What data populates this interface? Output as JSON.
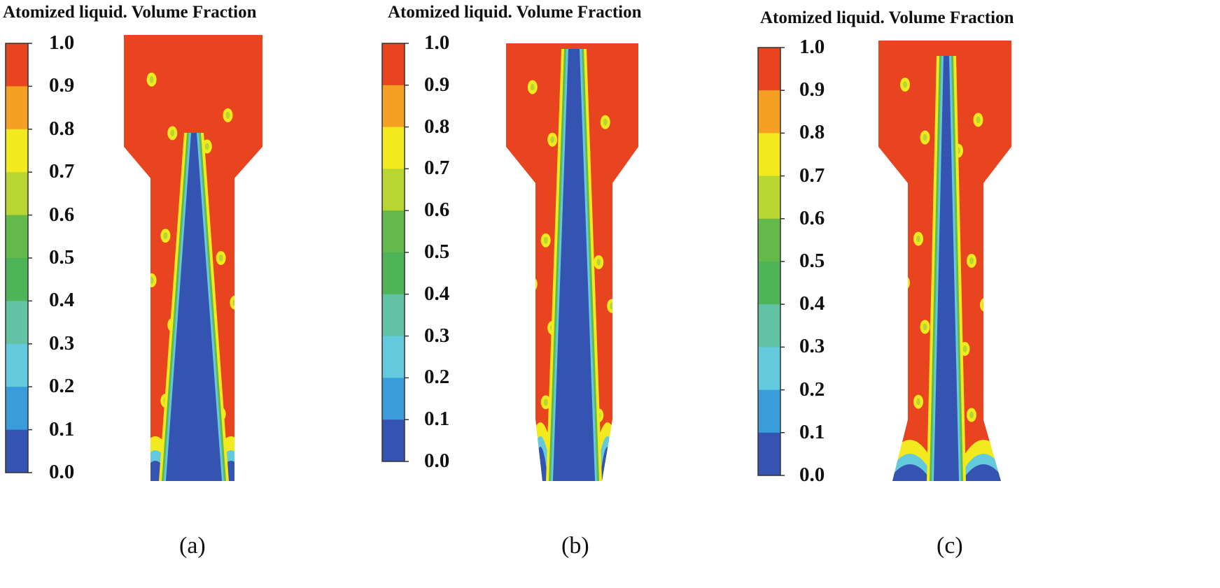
{
  "colorbar": {
    "ticks": [
      "1.0",
      "0.9",
      "0.8",
      "0.7",
      "0.6",
      "0.5",
      "0.4",
      "0.3",
      "0.2",
      "0.1",
      "0.0"
    ],
    "colors": [
      "#e8441f",
      "#f5a023",
      "#f2ea1e",
      "#b8d532",
      "#63b94a",
      "#4fb357",
      "#62c3a4",
      "#63c9dc",
      "#3a9ddb",
      "#3553b0"
    ],
    "jet_color": "#3553b0",
    "liquid_color": "#e8441f"
  },
  "panels": [
    {
      "title": "Atomized liquid. Volume Fraction",
      "caption": "(a)"
    },
    {
      "title": "Atomized liquid. Volume Fraction",
      "caption": "(b)"
    },
    {
      "title": "Atomized liquid. Volume Fraction",
      "caption": "(c)"
    }
  ]
}
